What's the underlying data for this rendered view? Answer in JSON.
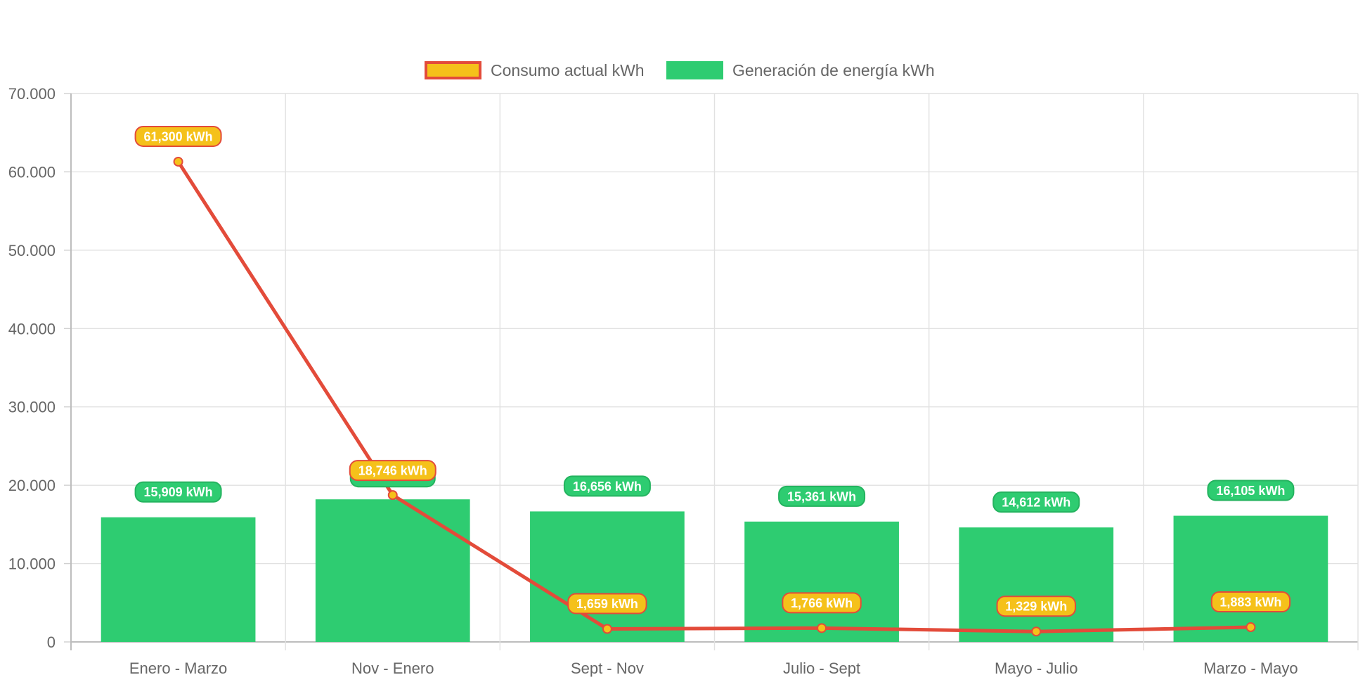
{
  "chart_data": {
    "type": "bar",
    "categories": [
      "Enero - Marzo",
      "Nov - Enero",
      "Sept - Nov",
      "Julio - Sept",
      "Mayo - Julio",
      "Marzo - Mayo"
    ],
    "series": [
      {
        "name": "Consumo actual kWh",
        "type": "line",
        "values": [
          61300,
          18746,
          1659,
          1766,
          1329,
          1883
        ],
        "labels": [
          "61,300 kWh",
          "18,746 kWh",
          "1,659 kWh",
          "1,766 kWh",
          "1,329 kWh",
          "1,883 kWh"
        ],
        "line_color": "#e34b3a",
        "fill_color": "#f5c11a"
      },
      {
        "name": "Generación de energía kWh",
        "type": "bar",
        "values": [
          15909,
          18200,
          16656,
          15361,
          14612,
          16105
        ],
        "labels": [
          "15,909 kWh",
          "",
          "16,656 kWh",
          "15,361 kWh",
          "14,612 kWh",
          "16,105 kWh"
        ],
        "color": "#2ecc71"
      }
    ],
    "y_ticks": [
      "0",
      "10.000",
      "20.000",
      "30.000",
      "40.000",
      "50.000",
      "60.000",
      "70.000"
    ],
    "ylim": [
      0,
      70000
    ],
    "grid": true,
    "legend_position": "top",
    "title": "",
    "xlabel": "",
    "ylabel": ""
  }
}
